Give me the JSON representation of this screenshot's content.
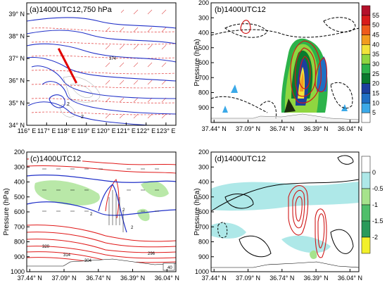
{
  "chart_data": [
    {
      "type": "map",
      "title": "(a)1400UTC12,750 hPa",
      "x_ticks": [
        "116° E",
        "117° E",
        "118° E",
        "119° E",
        "120° E",
        "121° E",
        "122° E",
        "123° E"
      ],
      "y_ticks": [
        "34° N",
        "35° N",
        "36° N",
        "37° N",
        "38° N",
        "39° N"
      ],
      "xlim": [
        116,
        123.5
      ],
      "ylim": [
        34,
        39.5
      ],
      "cross_section_line": {
        "start": {
          "lon": 117.6,
          "lat": 37.45
        },
        "end": {
          "lon": 118.5,
          "lat": 35.9
        }
      },
      "contour_labels": [
        "374",
        "2",
        "2"
      ]
    },
    {
      "type": "cross-section",
      "title": "(b)1400UTC12",
      "ylabel": "Pressure (hPa)",
      "x_ticks": [
        "37.44° N",
        "37.09° N",
        "36.74° N",
        "36.39° N",
        "36.04° N"
      ],
      "y_ticks": [
        "200",
        "300",
        "400",
        "500",
        "600",
        "700",
        "800",
        "900"
      ],
      "ylim": [
        1000,
        200
      ],
      "colorbar": {
        "levels": [
          "5",
          "10",
          "15",
          "20",
          "25",
          "30",
          "35",
          "40",
          "45",
          "50",
          "55"
        ],
        "colors": [
          "#ffffff",
          "#3ba9e8",
          "#1f6fc4",
          "#1c3f9e",
          "#0a7a2e",
          "#2db34a",
          "#8fd640",
          "#f2e33a",
          "#f29c1f",
          "#ee5a1c",
          "#d81b1b",
          "#b4102a"
        ]
      }
    },
    {
      "type": "cross-section",
      "title": "(c)1400UTC12",
      "ylabel": "Pressure (hPa)",
      "x_ticks": [
        "37.44° N",
        "37.09° N",
        "36.74° N",
        "36.39° N",
        "36.04° N"
      ],
      "y_ticks": [
        "200",
        "300",
        "400",
        "500",
        "600",
        "700",
        "800",
        "900",
        "1000"
      ],
      "ylim": [
        1000,
        200
      ],
      "contour_labels": [
        "320",
        "314",
        "304",
        "296",
        "2",
        "2",
        "2"
      ],
      "vector_ref": "40"
    },
    {
      "type": "cross-section",
      "title": "(d)1400UTC12",
      "ylabel": "Pressure (hPa)",
      "x_ticks": [
        "37.44° N",
        "37.09° N",
        "36.74° N",
        "36.39° N",
        "36.04° N"
      ],
      "y_ticks": [
        "200",
        "300",
        "400",
        "500",
        "600",
        "700",
        "800",
        "900",
        "1000"
      ],
      "ylim": [
        1000,
        200
      ],
      "colorbar": {
        "levels": [
          "0",
          "-0.5",
          "-1",
          "-1.5",
          "-2"
        ],
        "colors": [
          "#ffffff",
          "#aee8e8",
          "#a6e38c",
          "#4fbf6a",
          "#2a9a5a",
          "#f2f02a"
        ]
      }
    }
  ]
}
